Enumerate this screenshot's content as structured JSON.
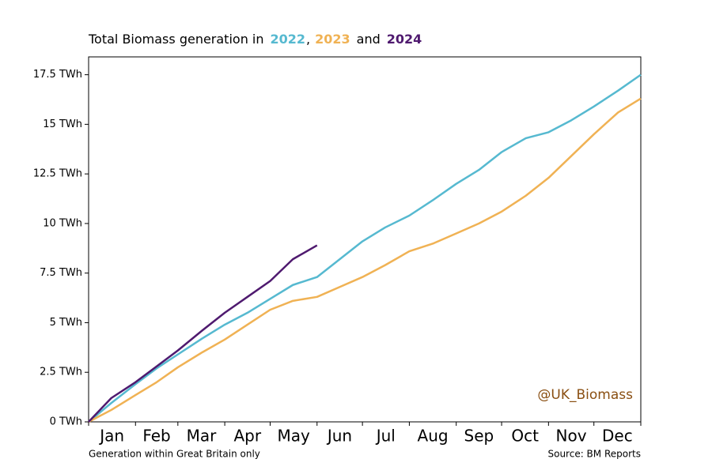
{
  "chart_data": {
    "type": "line",
    "title_parts": {
      "prefix": "Total Biomass generation in",
      "comma": ",",
      "and": "and"
    },
    "x": [
      0,
      15,
      31,
      45,
      59,
      75,
      90,
      105,
      120,
      135,
      151,
      166,
      181,
      196,
      212,
      228,
      243,
      258,
      273,
      289,
      304,
      319,
      334,
      350,
      365
    ],
    "xlim": [
      0,
      365
    ],
    "xticks": [
      0,
      31,
      59,
      90,
      120,
      151,
      181,
      212,
      243,
      273,
      304,
      334,
      365
    ],
    "month_labels": [
      "Jan",
      "Feb",
      "Mar",
      "Apr",
      "May",
      "Jun",
      "Jul",
      "Aug",
      "Sep",
      "Oct",
      "Nov",
      "Dec"
    ],
    "ylim": [
      0,
      18.4
    ],
    "yticks": [
      {
        "value": 0,
        "label": "0 TWh"
      },
      {
        "value": 2.5,
        "label": "2.5 TWh"
      },
      {
        "value": 5,
        "label": "5 TWh"
      },
      {
        "value": 7.5,
        "label": "7.5 TWh"
      },
      {
        "value": 10,
        "label": "10 TWh"
      },
      {
        "value": 12.5,
        "label": "12.5 TWh"
      },
      {
        "value": 15,
        "label": "15 TWh"
      },
      {
        "value": 17.5,
        "label": "17.5 TWh"
      }
    ],
    "series": [
      {
        "name": "2022",
        "color": "#56b9d0",
        "values": [
          0,
          0.95,
          1.9,
          2.7,
          3.4,
          4.2,
          4.9,
          5.5,
          6.2,
          6.9,
          7.3,
          8.2,
          9.1,
          9.8,
          10.4,
          11.2,
          12.0,
          12.7,
          13.6,
          14.3,
          14.6,
          15.2,
          15.9,
          16.7,
          17.5
        ]
      },
      {
        "name": "2023",
        "color": "#f0b254",
        "values": [
          0,
          0.6,
          1.35,
          2.0,
          2.75,
          3.5,
          4.15,
          4.9,
          5.65,
          6.1,
          6.3,
          6.8,
          7.3,
          7.9,
          8.6,
          9.0,
          9.5,
          10.0,
          10.6,
          11.4,
          12.3,
          13.4,
          14.5,
          15.6,
          16.3
        ]
      },
      {
        "name": "2024",
        "color": "#4f1a6f",
        "values": [
          0,
          1.2,
          2.0,
          2.8,
          3.6,
          4.6,
          5.5,
          6.3,
          7.1,
          8.2,
          8.9,
          null,
          null,
          null,
          null,
          null,
          null,
          null,
          null,
          null,
          null,
          null,
          null,
          null,
          null
        ]
      }
    ],
    "watermark": "@UK_Biomass",
    "footnote": "Generation within Great Britain only",
    "source": "Source: BM Reports"
  }
}
